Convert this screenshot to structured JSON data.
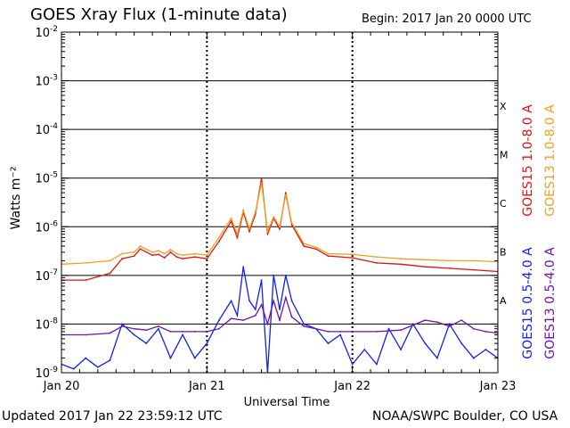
{
  "header": {
    "title": "GOES Xray Flux (1-minute data)",
    "begin": "Begin:  2017 Jan 20 0000 UTC"
  },
  "footer": {
    "updated": "Updated 2017 Jan 22 23:59:12 UTC",
    "credit": "NOAA/SWPC Boulder, CO USA"
  },
  "colors": {
    "goes15_long": "#e01010",
    "goes13_long": "#f0a020",
    "goes15_short": "#1020f0",
    "goes13_short": "#7010b0",
    "grid": "#000000"
  },
  "chart_data": {
    "type": "line",
    "title": "GOES Xray Flux (1-minute data)",
    "xlabel": "Universal Time",
    "ylabel": "Watts m⁻²",
    "y_scale": "log",
    "ylim": [
      1e-09,
      0.01
    ],
    "xlim": [
      0,
      72
    ],
    "x_unit": "hours since 2017 Jan 20 0000 UTC",
    "x_ticks": [
      {
        "x": 0,
        "label": "Jan 20"
      },
      {
        "x": 24,
        "label": "Jan 21"
      },
      {
        "x": 48,
        "label": "Jan 22"
      },
      {
        "x": 72,
        "label": "Jan 23"
      }
    ],
    "y_ticks": [
      {
        "exp": -9,
        "label": "10",
        "sup": "-9"
      },
      {
        "exp": -8,
        "label": "10",
        "sup": "-8"
      },
      {
        "exp": -7,
        "label": "10",
        "sup": "-7"
      },
      {
        "exp": -6,
        "label": "10",
        "sup": "-6"
      },
      {
        "exp": -5,
        "label": "10",
        "sup": "-5"
      },
      {
        "exp": -4,
        "label": "10",
        "sup": "-4"
      },
      {
        "exp": -3,
        "label": "10",
        "sup": "-3"
      },
      {
        "exp": -2,
        "label": "10",
        "sup": "-2"
      }
    ],
    "flare_classes": [
      {
        "label": "A",
        "exp": -8
      },
      {
        "label": "B",
        "exp": -7
      },
      {
        "label": "C",
        "exp": -6
      },
      {
        "label": "M",
        "exp": -5
      },
      {
        "label": "X",
        "exp": -4
      }
    ],
    "grid": true,
    "legend_placement": "right, vertical",
    "series": [
      {
        "name": "GOES15 1.0-8.0 A",
        "color": "#e01010",
        "x": [
          0,
          4,
          8,
          10,
          12,
          13,
          15,
          16,
          17,
          18,
          19,
          20,
          22,
          24,
          26,
          28,
          29,
          30,
          31,
          32,
          33,
          34,
          35,
          36,
          37,
          38,
          40,
          42,
          44,
          48,
          52,
          56,
          60,
          64,
          68,
          72
        ],
        "y": [
          8e-08,
          8e-08,
          1.1e-07,
          2.2e-07,
          2.5e-07,
          3.5e-07,
          2.6e-07,
          2.7e-07,
          2.3e-07,
          3e-07,
          2.4e-07,
          2.2e-07,
          2.4e-07,
          2.2e-07,
          5e-07,
          1.3e-06,
          6e-07,
          2e-06,
          8e-07,
          1.8e-06,
          1e-05,
          7e-07,
          1.5e-06,
          9e-07,
          5e-06,
          1.1e-06,
          4e-07,
          3.5e-07,
          2.5e-07,
          2.3e-07,
          1.8e-07,
          1.7e-07,
          1.5e-07,
          1.4e-07,
          1.3e-07,
          1.2e-07
        ]
      },
      {
        "name": "GOES13 1.0-8.0 A",
        "color": "#f0a020",
        "x": [
          0,
          4,
          8,
          10,
          12,
          13,
          15,
          16,
          17,
          18,
          19,
          20,
          22,
          24,
          26,
          28,
          29,
          30,
          31,
          32,
          33,
          34,
          35,
          36,
          37,
          38,
          40,
          42,
          44,
          48,
          52,
          56,
          60,
          64,
          68,
          72
        ],
        "y": [
          1.7e-07,
          1.8e-07,
          2e-07,
          2.8e-07,
          3e-07,
          4e-07,
          3e-07,
          3.2e-07,
          2.8e-07,
          3.4e-07,
          2.8e-07,
          2.6e-07,
          2.8e-07,
          2.6e-07,
          6e-07,
          1.5e-06,
          7e-07,
          2.2e-06,
          9e-07,
          2e-06,
          8e-06,
          8e-07,
          1.6e-06,
          1e-06,
          4.5e-06,
          1.2e-06,
          4.5e-07,
          3.8e-07,
          2.8e-07,
          2.7e-07,
          2.4e-07,
          2.2e-07,
          2.1e-07,
          2e-07,
          2e-07,
          1.9e-07
        ]
      },
      {
        "name": "GOES15 0.5-4.0 A",
        "color": "#1020f0",
        "x": [
          0,
          2,
          4,
          6,
          8,
          10,
          12,
          14,
          16,
          18,
          20,
          22,
          24,
          26,
          28,
          29,
          30,
          31,
          32,
          33,
          34,
          35,
          36,
          37,
          38,
          40,
          42,
          44,
          46,
          48,
          50,
          52,
          54,
          56,
          58,
          60,
          62,
          64,
          66,
          68,
          70,
          72
        ],
        "y": [
          1.5e-09,
          1.2e-09,
          2e-09,
          1.3e-09,
          1.8e-09,
          1e-08,
          6e-09,
          4e-09,
          8e-09,
          2e-09,
          6e-09,
          2e-09,
          4e-09,
          1.2e-08,
          3e-08,
          1.5e-08,
          1.5e-07,
          3e-08,
          2e-08,
          8e-08,
          1e-09,
          1e-07,
          2e-08,
          1e-07,
          3e-08,
          1e-08,
          8e-09,
          4e-09,
          6e-09,
          1.5e-09,
          3e-09,
          1.5e-09,
          8e-09,
          3e-09,
          1e-08,
          4e-09,
          2e-09,
          1e-08,
          4e-09,
          2e-09,
          3e-09,
          2e-09
        ]
      },
      {
        "name": "GOES13 0.5-4.0 A",
        "color": "#7010b0",
        "x": [
          0,
          4,
          8,
          10,
          12,
          14,
          16,
          18,
          20,
          22,
          24,
          26,
          28,
          30,
          32,
          33,
          34,
          35,
          36,
          37,
          38,
          40,
          42,
          44,
          46,
          48,
          52,
          56,
          60,
          62,
          64,
          66,
          68,
          70,
          72
        ],
        "y": [
          6e-09,
          6e-09,
          6.5e-09,
          9e-09,
          8e-09,
          7.5e-09,
          9e-09,
          7e-09,
          7e-09,
          7e-09,
          7e-09,
          8e-09,
          1.3e-08,
          1.2e-08,
          1.5e-08,
          2.5e-08,
          1e-08,
          3e-08,
          1.2e-08,
          3.5e-08,
          1.4e-08,
          9e-09,
          8e-09,
          7e-09,
          7e-09,
          7e-09,
          7e-09,
          7.5e-09,
          1.2e-08,
          1.1e-08,
          9e-09,
          1.2e-08,
          8e-09,
          7e-09,
          6.5e-09
        ]
      }
    ]
  }
}
